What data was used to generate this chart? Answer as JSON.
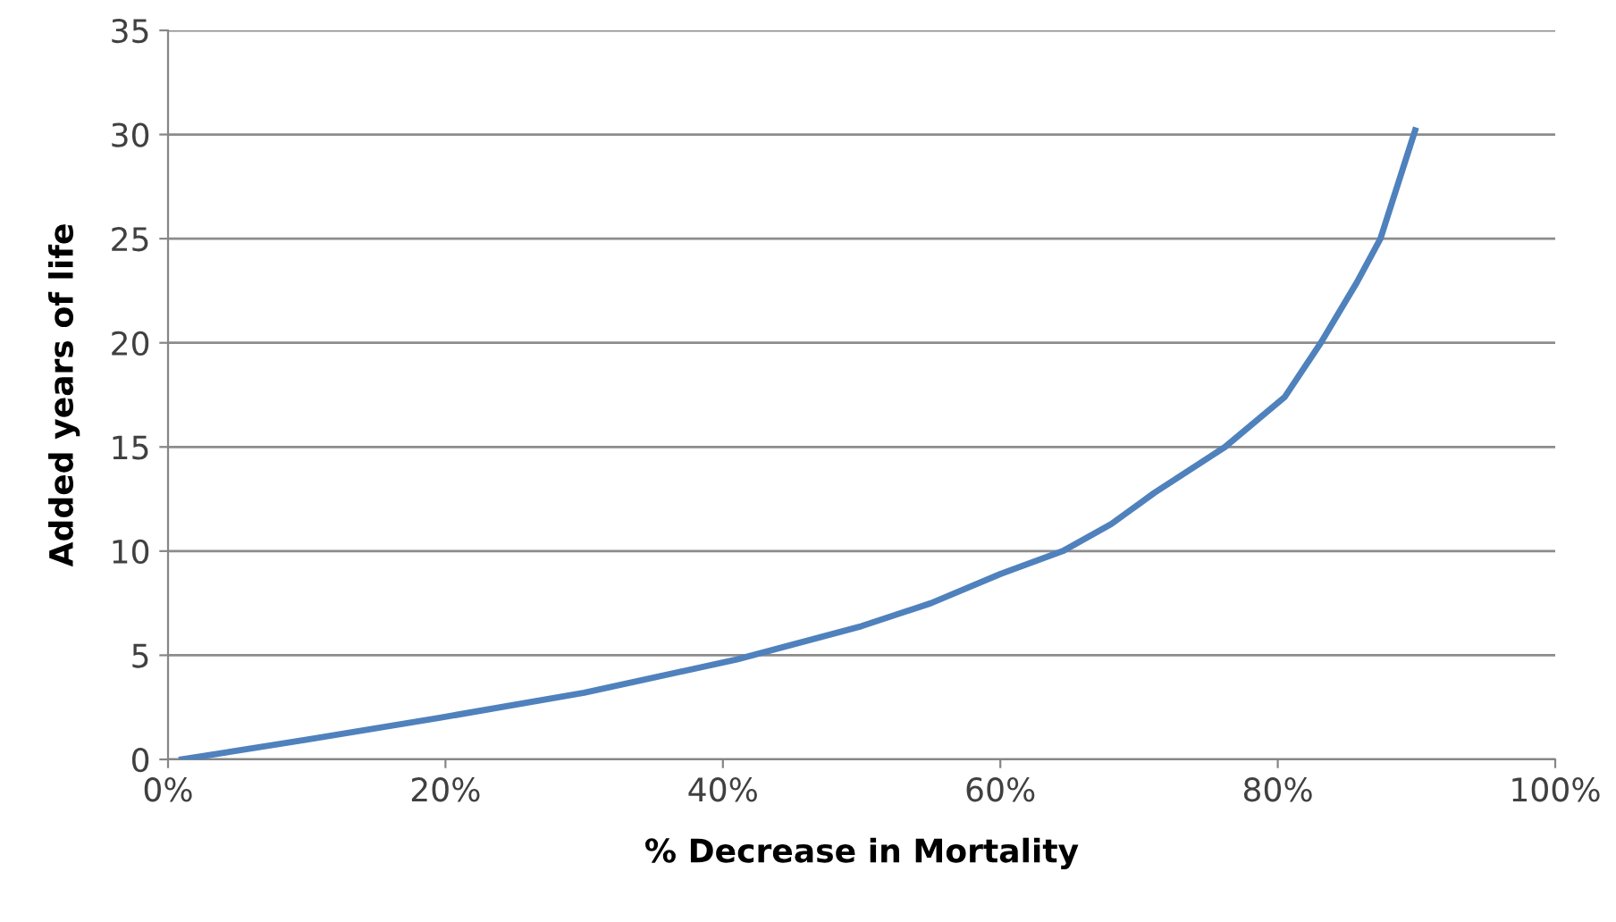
{
  "chart_data": {
    "type": "line",
    "xlabel": "% Decrease in Mortality",
    "ylabel": "Added years of life",
    "x": [
      1,
      10,
      19.6,
      30,
      41,
      50,
      55,
      60,
      64.5,
      68,
      71.1,
      76.2,
      80.5,
      83.1,
      85.7,
      87.4,
      89.9
    ],
    "series": [
      {
        "color": "#4f81bd",
        "values": [
          0,
          0.95,
          2.0,
          3.2,
          4.8,
          6.4,
          7.5,
          8.9,
          10,
          11.3,
          12.8,
          15,
          17.4,
          20,
          22.9,
          25,
          30.2
        ]
      }
    ],
    "xlim": [
      0,
      100
    ],
    "xticks": [
      {
        "value": 0,
        "label": "0%"
      },
      {
        "value": 20,
        "label": "20%"
      },
      {
        "value": 40,
        "label": "40%"
      },
      {
        "value": 60,
        "label": "60%"
      },
      {
        "value": 80,
        "label": "80%"
      },
      {
        "value": 100,
        "label": "100%"
      }
    ],
    "ylim": [
      0,
      35
    ],
    "yticks": [
      0,
      5,
      10,
      15,
      20,
      25,
      30,
      35
    ],
    "grid": "y",
    "legend": false,
    "marker": "none",
    "line_style": "solid"
  }
}
